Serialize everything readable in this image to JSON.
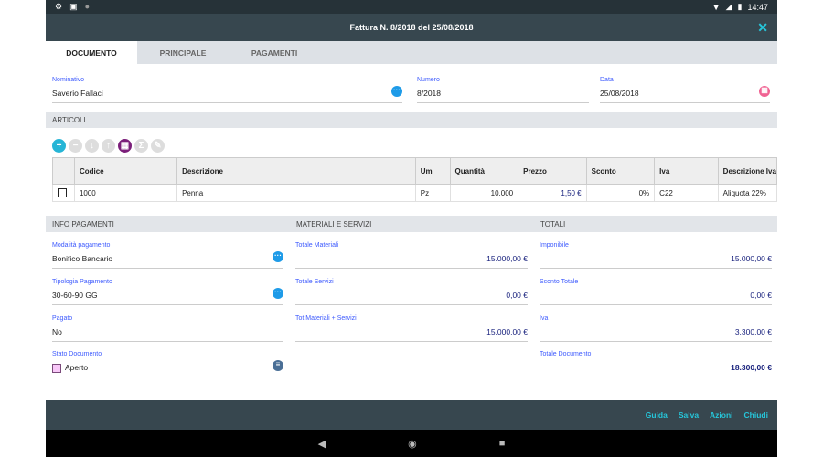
{
  "status": {
    "time": "14:47",
    "icons": [
      "gear-icon",
      "a-icon",
      "circle-icon"
    ]
  },
  "title": "Fattura N. 8/2018 del 25/08/2018",
  "tabs": [
    "DOCUMENTO",
    "PRINCIPALE",
    "PAGAMENTI"
  ],
  "header_fields": {
    "nominativo": {
      "label": "Nominativo",
      "value": "Saverio Fallaci"
    },
    "numero": {
      "label": "Numero",
      "value": "8/2018"
    },
    "data": {
      "label": "Data",
      "value": "25/08/2018"
    }
  },
  "articoli": {
    "title": "ARTICOLI",
    "columns": [
      "",
      "Codice",
      "Descrizione",
      "Um",
      "Quantità",
      "Prezzo",
      "Sconto",
      "Iva",
      "Descrizione Iva"
    ],
    "rows": [
      {
        "codice": "1000",
        "descrizione": "Penna",
        "um": "Pz",
        "quantita": "10.000",
        "prezzo": "1,50 €",
        "sconto": "0%",
        "iva": "C22",
        "descrizione_iva": "Aliquota 22%"
      }
    ]
  },
  "info_pagamenti": {
    "title": "INFO PAGAMENTI",
    "modalita": {
      "label": "Modalità pagamento",
      "value": "Bonifico Bancario"
    },
    "tipologia": {
      "label": "Tipologia Pagamento",
      "value": "30-60-90 GG"
    },
    "pagato": {
      "label": "Pagato",
      "value": "No"
    },
    "stato": {
      "label": "Stato Documento",
      "value": "Aperto",
      "color": "#f8c8f8"
    }
  },
  "materiali": {
    "title": "MATERIALI E SERVIZI",
    "totale_materiali": {
      "label": "Totale Materiali",
      "value": "15.000,00 €"
    },
    "totale_servizi": {
      "label": "Totale Servizi",
      "value": "0,00 €"
    },
    "tot_mat_serv": {
      "label": "Tot Materiali + Servizi",
      "value": "15.000,00 €"
    }
  },
  "totali": {
    "title": "TOTALI",
    "imponibile": {
      "label": "Imponibile",
      "value": "15.000,00 €"
    },
    "sconto": {
      "label": "Sconto Totale",
      "value": "0,00 €"
    },
    "iva": {
      "label": "Iva",
      "value": "3.300,00 €"
    },
    "totale": {
      "label": "Totale Documento",
      "value": "18.300,00 €"
    }
  },
  "actions": [
    "Guida",
    "Salva",
    "Azioni",
    "Chiudi"
  ],
  "colors": {
    "accent": "#26c6da",
    "header": "#37474f",
    "label": "#3d5afe"
  }
}
